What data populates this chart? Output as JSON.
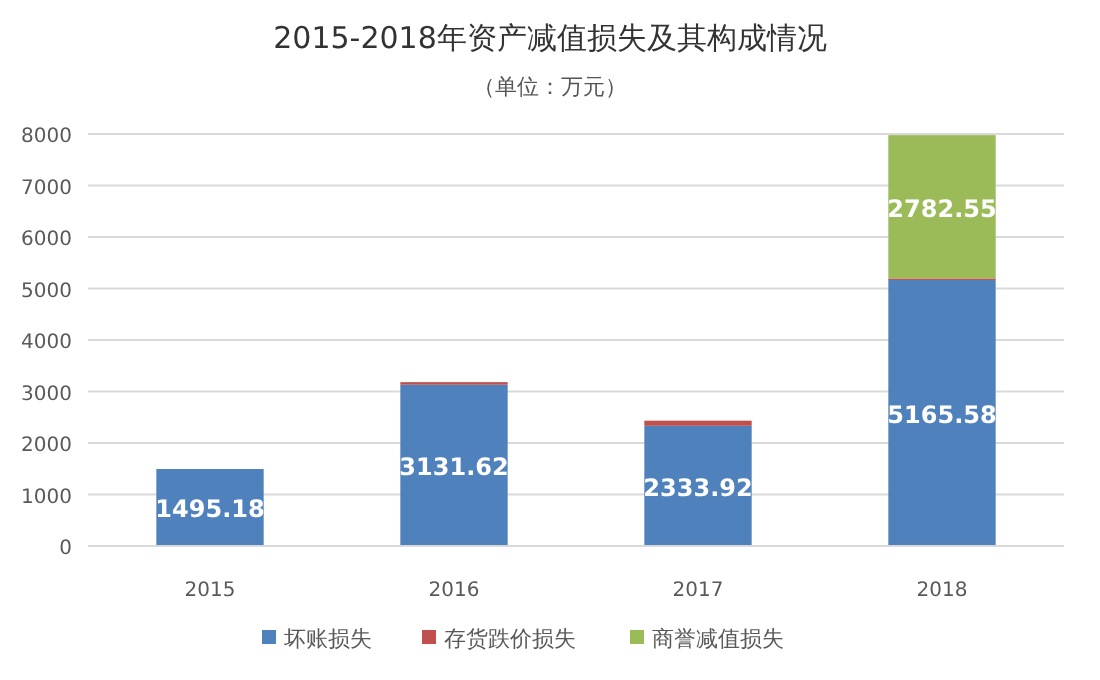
{
  "chart_data": {
    "type": "bar",
    "title": "2015-2018年资产减值损失及其构成情况",
    "subtitle": "（单位：万元）",
    "categories": [
      "2015",
      "2016",
      "2017",
      "2018"
    ],
    "stacked": true,
    "ylim": [
      0,
      8000
    ],
    "yticks": [
      0,
      1000,
      2000,
      3000,
      4000,
      5000,
      6000,
      7000,
      8000
    ],
    "grid": "y",
    "legend": "bottom",
    "series": [
      {
        "name": "坏账损失",
        "color": "#4f81bd",
        "values": [
          1495.18,
          3131.62,
          2333.92,
          5165.58
        ],
        "value_labels": [
          "1495.18",
          "3131.62",
          "2333.92",
          "5165.58"
        ]
      },
      {
        "name": "存货跌价损失",
        "color": "#c0504d",
        "values": [
          null,
          50,
          100,
          30
        ]
      },
      {
        "name": "商誉减值损失",
        "color": "#9bbb59",
        "values": [
          null,
          null,
          null,
          2782.55
        ],
        "value_labels": [
          null,
          null,
          null,
          "2782.55"
        ]
      }
    ]
  }
}
